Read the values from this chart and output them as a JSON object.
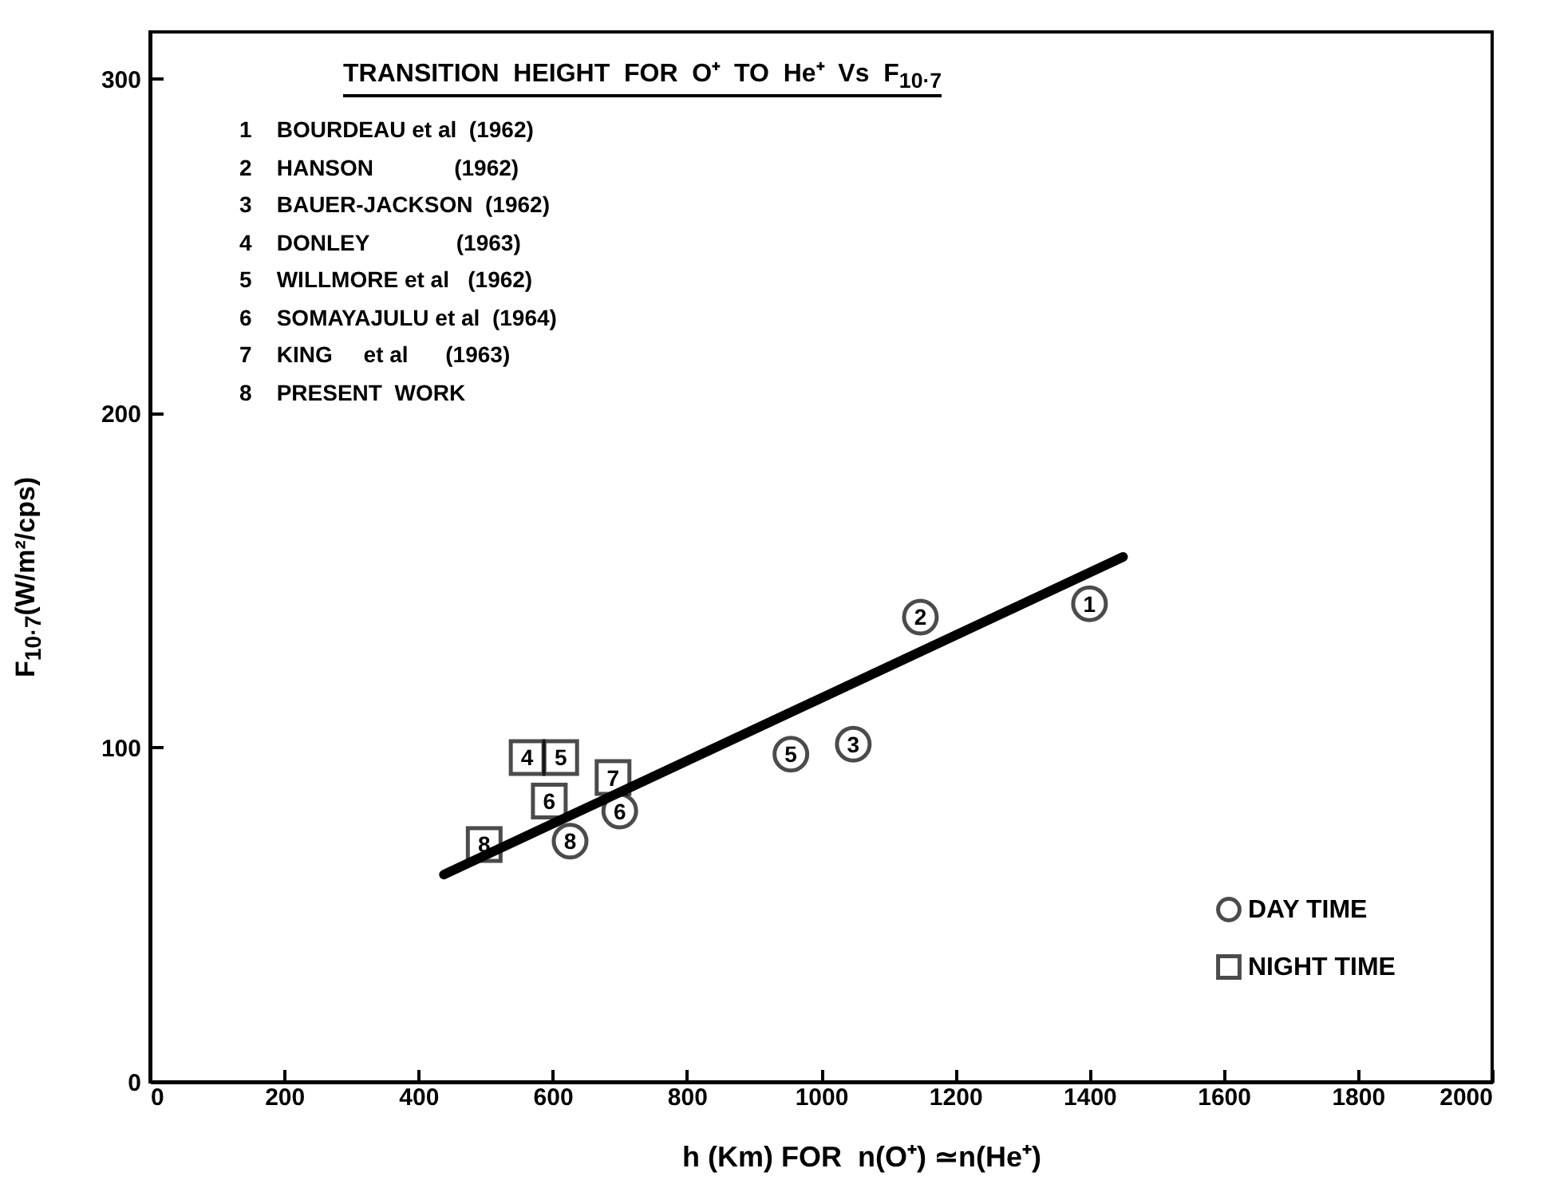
{
  "chart_data": {
    "type": "scatter",
    "title": "TRANSITION  HEIGHT  FOR  O⁺  TO  He⁺  Vs  F$_{10·7}$",
    "xlabel": "h (Km) FOR  n(O⁺) ≃n(He⁺)",
    "ylabel": "F$_{10·7}$(W/m²/cps)",
    "annotations": [
      "1    BOURDEAU et al  (1962)",
      "2    HANSON             (1962)",
      "3    BAUER-JACKSON  (1962)",
      "4    DONLEY              (1963)",
      "5    WILLMORE et al   (1962)",
      "6    SOMAYAJULU et al  (1964)",
      "7    KING     et al      (1963)",
      "8    PRESENT  WORK",
      {
        "text": "1",
        "x": 1400,
        "y": 143
      },
      {
        "text": "2",
        "x": 1148,
        "y": 139
      },
      {
        "text": "3",
        "x": 1048,
        "y": 101
      },
      {
        "text": "5",
        "x": 955,
        "y": 98
      },
      {
        "text": "6",
        "x": 700,
        "y": 81
      },
      {
        "text": "8",
        "x": 626,
        "y": 72
      },
      {
        "text": "4",
        "x": 562,
        "y": 97
      },
      {
        "text": "5",
        "x": 612,
        "y": 97
      },
      {
        "text": "6",
        "x": 595,
        "y": 84
      },
      {
        "text": "7",
        "x": 690,
        "y": 91
      },
      {
        "text": "8",
        "x": 498,
        "y": 71
      }
    ],
    "xlim": [
      0,
      2000
    ],
    "ylim": [
      0,
      314
    ],
    "xticks": [
      0,
      200,
      400,
      600,
      800,
      1000,
      1200,
      1400,
      1600,
      1800,
      2000
    ],
    "yticks": [
      0,
      100,
      200,
      300
    ],
    "grid": false,
    "legend": "bottom right",
    "series": [
      {
        "name": "DAY TIME",
        "color": "#000000",
        "marker": "circle",
        "x": [
          1400,
          1148,
          1048,
          955,
          700,
          626
        ],
        "values": [
          143,
          139,
          101,
          98,
          81,
          72
        ]
      },
      {
        "name": "NIGHT TIME",
        "color": "#000000",
        "marker": "square",
        "x": [
          562,
          612,
          595,
          690,
          498
        ],
        "values": [
          97,
          97,
          84,
          91,
          71
        ]
      },
      {
        "type": "line",
        "color": "#000000",
        "line_style": "solid",
        "x": [
          438,
          1450
        ],
        "values": [
          62,
          157
        ]
      }
    ]
  }
}
